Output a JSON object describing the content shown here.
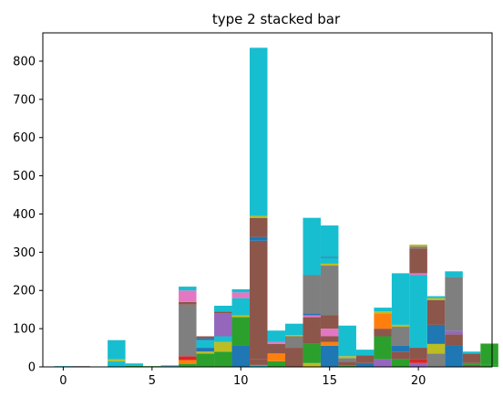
{
  "chart_data": {
    "type": "bar",
    "stacked": true,
    "title": "type 2 stacked bar",
    "xlabel": "",
    "ylabel": "",
    "xlim": [
      -1.15,
      24.15
    ],
    "ylim": [
      0,
      874
    ],
    "x_ticks": [
      0,
      5,
      10,
      15,
      20
    ],
    "y_ticks": [
      0,
      100,
      200,
      300,
      400,
      500,
      600,
      700,
      800
    ],
    "grid": false,
    "legend": "none",
    "bar_width": 1.0,
    "palette": [
      "#1f77b4",
      "#ff7f0e",
      "#2ca02c",
      "#d62728",
      "#9467bd",
      "#8c564b",
      "#e377c2",
      "#7f7f7f",
      "#bcbd22",
      "#17becf"
    ],
    "bars": [
      {
        "x": 0,
        "segments": [
          {
            "value": 1,
            "color": "#8c564b"
          },
          {
            "value": 1,
            "color": "#17becf"
          }
        ]
      },
      {
        "x": 1,
        "segments": [
          {
            "value": 1,
            "color": "#8c564b"
          },
          {
            "value": 1,
            "color": "#7f7f7f"
          }
        ]
      },
      {
        "x": 2,
        "segments": [
          {
            "value": 1,
            "color": "#2ca02c"
          }
        ]
      },
      {
        "x": 3,
        "segments": [
          {
            "value": 15,
            "color": "#17becf"
          },
          {
            "value": 5,
            "color": "#bcbd22"
          },
          {
            "value": 50,
            "color": "#17becf"
          }
        ]
      },
      {
        "x": 4,
        "segments": [
          {
            "value": 3,
            "color": "#2ca02c"
          },
          {
            "value": 6,
            "color": "#17becf"
          }
        ]
      },
      {
        "x": 5,
        "segments": [
          {
            "value": 2,
            "color": "#2ca02c"
          }
        ]
      },
      {
        "x": 6,
        "segments": [
          {
            "value": 2,
            "color": "#1f77b4"
          },
          {
            "value": 2,
            "color": "#17becf"
          }
        ]
      },
      {
        "x": 7,
        "segments": [
          {
            "value": 8,
            "color": "#2ca02c"
          },
          {
            "value": 10,
            "color": "#ff7f0e"
          },
          {
            "value": 10,
            "color": "#d62728"
          },
          {
            "value": 135,
            "color": "#7f7f7f"
          },
          {
            "value": 7,
            "color": "#8c564b"
          },
          {
            "value": 30,
            "color": "#e377c2"
          },
          {
            "value": 10,
            "color": "#17becf"
          }
        ]
      },
      {
        "x": 8,
        "segments": [
          {
            "value": 35,
            "color": "#2ca02c"
          },
          {
            "value": 5,
            "color": "#bcbd22"
          },
          {
            "value": 10,
            "color": "#1f77b4"
          },
          {
            "value": 20,
            "color": "#17becf"
          },
          {
            "value": 5,
            "color": "#1f77b4"
          },
          {
            "value": 5,
            "color": "#8c564b"
          }
        ]
      },
      {
        "x": 9,
        "segments": [
          {
            "value": 40,
            "color": "#2ca02c"
          },
          {
            "value": 25,
            "color": "#bcbd22"
          },
          {
            "value": 15,
            "color": "#17becf"
          },
          {
            "value": 60,
            "color": "#9467bd"
          },
          {
            "value": 5,
            "color": "#8c564b"
          },
          {
            "value": 15,
            "color": "#17becf"
          }
        ]
      },
      {
        "x": 10,
        "segments": [
          {
            "value": 55,
            "color": "#1f77b4"
          },
          {
            "value": 75,
            "color": "#2ca02c"
          },
          {
            "value": 5,
            "color": "#bcbd22"
          },
          {
            "value": 45,
            "color": "#17becf"
          },
          {
            "value": 15,
            "color": "#e377c2"
          },
          {
            "value": 8,
            "color": "#17becf"
          }
        ]
      },
      {
        "x": 11,
        "segments": [
          {
            "value": 5,
            "color": "#17becf"
          },
          {
            "value": 15,
            "color": "#8c564b"
          },
          {
            "value": 310,
            "color": "#8c564b"
          },
          {
            "value": 10,
            "color": "#1f77b4"
          },
          {
            "value": 50,
            "color": "#8c564b"
          },
          {
            "value": 5,
            "color": "#bcbd22"
          },
          {
            "value": 440,
            "color": "#17becf"
          }
        ]
      },
      {
        "x": 12,
        "segments": [
          {
            "value": 15,
            "color": "#2ca02c"
          },
          {
            "value": 20,
            "color": "#ff7f0e"
          },
          {
            "value": 25,
            "color": "#8c564b"
          },
          {
            "value": 5,
            "color": "#e377c2"
          },
          {
            "value": 30,
            "color": "#17becf"
          }
        ]
      },
      {
        "x": 13,
        "segments": [
          {
            "value": 50,
            "color": "#8c564b"
          },
          {
            "value": 30,
            "color": "#7f7f7f"
          },
          {
            "value": 3,
            "color": "#bcbd22"
          },
          {
            "value": 30,
            "color": "#17becf"
          }
        ]
      },
      {
        "x": 14,
        "segments": [
          {
            "value": 10,
            "color": "#bcbd22"
          },
          {
            "value": 50,
            "color": "#2ca02c"
          },
          {
            "value": 70,
            "color": "#8c564b"
          },
          {
            "value": 5,
            "color": "#e377c2"
          },
          {
            "value": 5,
            "color": "#1f77b4"
          },
          {
            "value": 100,
            "color": "#7f7f7f"
          },
          {
            "value": 150,
            "color": "#17becf"
          }
        ]
      },
      {
        "x": 15,
        "segments": [
          {
            "value": 55,
            "color": "#1f77b4"
          },
          {
            "value": 10,
            "color": "#ff7f0e"
          },
          {
            "value": 15,
            "color": "#8c564b"
          },
          {
            "value": 20,
            "color": "#e377c2"
          },
          {
            "value": 35,
            "color": "#8c564b"
          },
          {
            "value": 130,
            "color": "#7f7f7f"
          },
          {
            "value": 5,
            "color": "#bcbd22"
          },
          {
            "value": 15,
            "color": "#17becf"
          },
          {
            "value": 3,
            "color": "#1f77b4"
          },
          {
            "value": 82,
            "color": "#17becf"
          }
        ]
      },
      {
        "x": 16,
        "segments": [
          {
            "value": 3,
            "color": "#2ca02c"
          },
          {
            "value": 10,
            "color": "#8c564b"
          },
          {
            "value": 10,
            "color": "#7f7f7f"
          },
          {
            "value": 5,
            "color": "#bcbd22"
          },
          {
            "value": 80,
            "color": "#17becf"
          }
        ]
      },
      {
        "x": 17,
        "segments": [
          {
            "value": 10,
            "color": "#1f77b4"
          },
          {
            "value": 20,
            "color": "#8c564b"
          },
          {
            "value": 15,
            "color": "#17becf"
          }
        ]
      },
      {
        "x": 18,
        "segments": [
          {
            "value": 20,
            "color": "#9467bd"
          },
          {
            "value": 60,
            "color": "#2ca02c"
          },
          {
            "value": 20,
            "color": "#8c564b"
          },
          {
            "value": 40,
            "color": "#ff7f0e"
          },
          {
            "value": 5,
            "color": "#bcbd22"
          },
          {
            "value": 10,
            "color": "#17becf"
          }
        ]
      },
      {
        "x": 19,
        "segments": [
          {
            "value": 20,
            "color": "#2ca02c"
          },
          {
            "value": 20,
            "color": "#8c564b"
          },
          {
            "value": 15,
            "color": "#1f77b4"
          },
          {
            "value": 50,
            "color": "#7f7f7f"
          },
          {
            "value": 5,
            "color": "#bcbd22"
          },
          {
            "value": 135,
            "color": "#17becf"
          }
        ]
      },
      {
        "x": 20,
        "segments": [
          {
            "value": 10,
            "color": "#9467bd"
          },
          {
            "value": 10,
            "color": "#d62728"
          },
          {
            "value": 30,
            "color": "#8c564b"
          },
          {
            "value": 190,
            "color": "#17becf"
          },
          {
            "value": 5,
            "color": "#e377c2"
          },
          {
            "value": 65,
            "color": "#8c564b"
          },
          {
            "value": 5,
            "color": "#7f7f7f"
          },
          {
            "value": 5,
            "color": "#bcbd22"
          }
        ]
      },
      {
        "x": 21,
        "segments": [
          {
            "value": 35,
            "color": "#7f7f7f"
          },
          {
            "value": 25,
            "color": "#bcbd22"
          },
          {
            "value": 50,
            "color": "#1f77b4"
          },
          {
            "value": 65,
            "color": "#8c564b"
          },
          {
            "value": 5,
            "color": "#bcbd22"
          },
          {
            "value": 5,
            "color": "#17becf"
          }
        ]
      },
      {
        "x": 22,
        "segments": [
          {
            "value": 55,
            "color": "#1f77b4"
          },
          {
            "value": 30,
            "color": "#8c564b"
          },
          {
            "value": 10,
            "color": "#9467bd"
          },
          {
            "value": 140,
            "color": "#7f7f7f"
          },
          {
            "value": 15,
            "color": "#17becf"
          }
        ]
      },
      {
        "x": 23,
        "segments": [
          {
            "value": 5,
            "color": "#8c564b"
          },
          {
            "value": 5,
            "color": "#2ca02c"
          },
          {
            "value": 25,
            "color": "#8c564b"
          },
          {
            "value": 5,
            "color": "#17becf"
          }
        ]
      },
      {
        "x": 24,
        "segments": [
          {
            "value": 5,
            "color": "#2ca02c"
          },
          {
            "value": 55,
            "color": "#2ca02c"
          },
          {
            "value": 2,
            "color": "#bcbd22"
          }
        ]
      }
    ]
  }
}
